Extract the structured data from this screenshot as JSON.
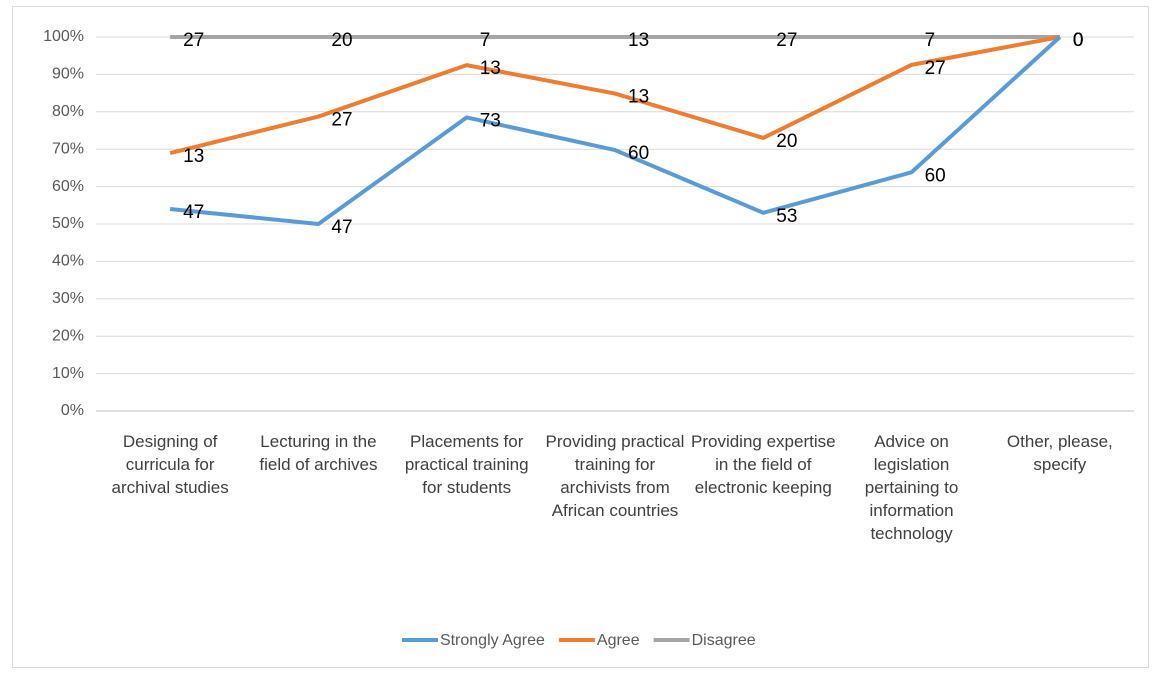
{
  "chart_data": {
    "type": "line",
    "stacking": "percent",
    "categories": [
      "Designing of curricula for archival studies",
      "Lecturing in the field of archives",
      "Placements for practical training for students",
      "Providing practical training for archivists from African countries",
      "Providing expertise in the field of electronic keeping",
      "Advice on legislation pertaining to information technology",
      "Other, please, specify"
    ],
    "series": [
      {
        "name": "Strongly Agree",
        "color": "#5b9bd5",
        "values": [
          47,
          47,
          73,
          60,
          53,
          60,
          0
        ]
      },
      {
        "name": "Agree",
        "color": "#ed7d31",
        "values": [
          13,
          27,
          13,
          13,
          20,
          27,
          0
        ]
      },
      {
        "name": "Disagree",
        "color": "#a5a5a5",
        "values": [
          27,
          20,
          7,
          13,
          27,
          7,
          0
        ]
      }
    ],
    "ylim": [
      0,
      100
    ],
    "yticks": [
      {
        "value": 0,
        "label": "0%"
      },
      {
        "value": 10,
        "label": "10%"
      },
      {
        "value": 20,
        "label": "20%"
      },
      {
        "value": 30,
        "label": "30%"
      },
      {
        "value": 40,
        "label": "40%"
      },
      {
        "value": 50,
        "label": "50%"
      },
      {
        "value": 60,
        "label": "60%"
      },
      {
        "value": 70,
        "label": "70%"
      },
      {
        "value": 80,
        "label": "80%"
      },
      {
        "value": 90,
        "label": "90%"
      },
      {
        "value": 100,
        "label": "100%"
      }
    ],
    "grid": true,
    "legend": "bottom"
  }
}
